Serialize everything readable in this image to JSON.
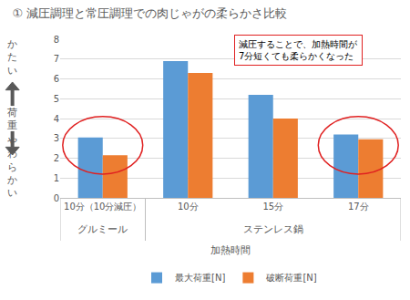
{
  "chart_data": {
    "type": "bar",
    "title": "① 減圧調理と常圧調理での肉じゃがの柔らかさ比較",
    "categories": [
      "10分（10分減圧）",
      "10分",
      "15分",
      "17分"
    ],
    "category_groups": [
      "グルミール",
      "ステンレス鍋",
      "ステンレス鍋",
      "ステンレス鍋"
    ],
    "xlabel": "加熱時間",
    "ylabel": "荷重",
    "ylabel_top": "かたい",
    "ylabel_bottom": "やわらかい",
    "annotation": "減圧することで、加熱時間が\n7分短くても柔らかくなった",
    "series": [
      {
        "name": "最大荷重[N]",
        "color": "#5b9bd5",
        "values": [
          3.05,
          6.9,
          5.2,
          3.2
        ]
      },
      {
        "name": "破断荷重[N]",
        "color": "#ed7d31",
        "values": [
          2.15,
          6.3,
          4.0,
          2.95
        ]
      }
    ],
    "ylim": [
      0,
      8
    ],
    "yticks": [
      0,
      1,
      2,
      3,
      4,
      5,
      6,
      7,
      8
    ],
    "grid": true,
    "legend": "bottom",
    "data_labels": false
  }
}
